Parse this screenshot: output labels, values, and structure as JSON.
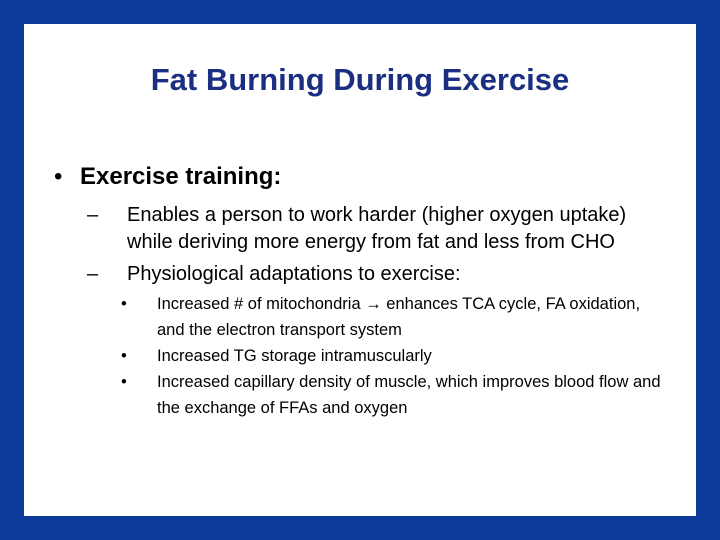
{
  "slide": {
    "title": "Fat Burning During Exercise",
    "bullets": [
      {
        "text": "Exercise training:",
        "items": [
          {
            "text": "Enables a person to work harder (higher oxygen uptake) while deriving more energy from fat and less from CHO",
            "items": []
          },
          {
            "text": "Physiological adaptations to exercise:",
            "items": [
              "Increased # of mitochondria → enhances TCA cycle, FA oxidation, and the electron transport system",
              "Increased TG storage intramuscularly",
              "Increased capillary density of muscle, which improves blood flow and the exchange of FFAs and oxygen"
            ]
          }
        ]
      }
    ]
  }
}
